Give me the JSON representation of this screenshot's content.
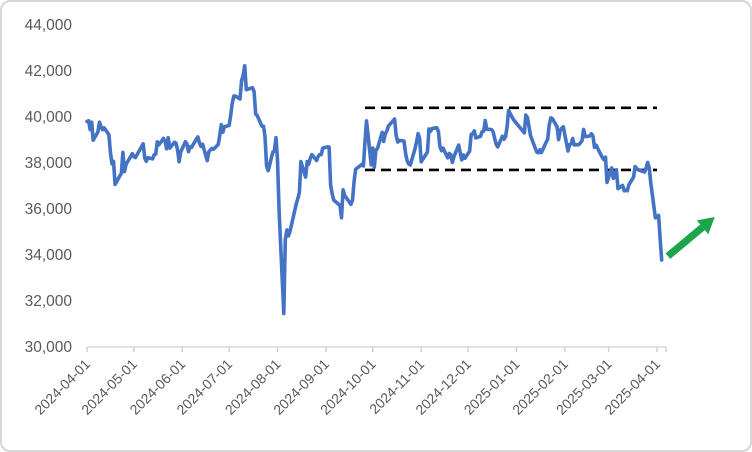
{
  "chart_data": {
    "type": "line",
    "title": "",
    "xlabel": "",
    "ylabel": "",
    "ylim": [
      30000,
      44000
    ],
    "y_tick_step": 2000,
    "y_tick_values": [
      30000,
      32000,
      34000,
      36000,
      38000,
      40000,
      42000,
      44000
    ],
    "y_tick_labels": [
      "30,000",
      "32,000",
      "34,000",
      "36,000",
      "38,000",
      "40,000",
      "42,000",
      "44,000"
    ],
    "x_tick_labels": [
      "2024-04-01",
      "2024-05-01",
      "2024-06-01",
      "2024-07-01",
      "2024-08-01",
      "2024-09-01",
      "2024-10-01",
      "2024-11-01",
      "2024-12-01",
      "2025-01-01",
      "2025-02-01",
      "2025-03-01",
      "2025-04-01"
    ],
    "x_range": [
      "2024-04-01",
      "2025-04-07"
    ],
    "grid": "off",
    "legend": "none",
    "series": [
      {
        "name": "daily-close",
        "color": "#4472C4",
        "points": [
          [
            "2024-04-01",
            39803
          ],
          [
            "2024-04-02",
            39839
          ],
          [
            "2024-04-03",
            39452
          ],
          [
            "2024-04-04",
            39774
          ],
          [
            "2024-04-05",
            38992
          ],
          [
            "2024-04-08",
            39347
          ],
          [
            "2024-04-09",
            39773
          ],
          [
            "2024-04-10",
            39582
          ],
          [
            "2024-04-11",
            39442
          ],
          [
            "2024-04-12",
            39524
          ],
          [
            "2024-04-15",
            39233
          ],
          [
            "2024-04-16",
            38471
          ],
          [
            "2024-04-17",
            37962
          ],
          [
            "2024-04-18",
            38080
          ],
          [
            "2024-04-19",
            37068
          ],
          [
            "2024-04-22",
            37439
          ],
          [
            "2024-04-23",
            37552
          ],
          [
            "2024-04-24",
            38460
          ],
          [
            "2024-04-25",
            37628
          ],
          [
            "2024-04-26",
            37935
          ],
          [
            "2024-04-30",
            38406
          ],
          [
            "2024-05-01",
            38274
          ],
          [
            "2024-05-02",
            38236
          ],
          [
            "2024-05-07",
            38835
          ],
          [
            "2024-05-08",
            38202
          ],
          [
            "2024-05-09",
            38074
          ],
          [
            "2024-05-10",
            38229
          ],
          [
            "2024-05-13",
            38179
          ],
          [
            "2024-05-14",
            38356
          ],
          [
            "2024-05-15",
            38386
          ],
          [
            "2024-05-16",
            38920
          ],
          [
            "2024-05-17",
            38787
          ],
          [
            "2024-05-20",
            39069
          ],
          [
            "2024-05-21",
            38947
          ],
          [
            "2024-05-22",
            38617
          ],
          [
            "2024-05-23",
            39103
          ],
          [
            "2024-05-24",
            38646
          ],
          [
            "2024-05-27",
            38900
          ],
          [
            "2024-05-28",
            38855
          ],
          [
            "2024-05-29",
            38557
          ],
          [
            "2024-05-30",
            38054
          ],
          [
            "2024-05-31",
            38488
          ],
          [
            "2024-06-03",
            38923
          ],
          [
            "2024-06-04",
            38837
          ],
          [
            "2024-06-05",
            38490
          ],
          [
            "2024-06-06",
            38703
          ],
          [
            "2024-06-07",
            38684
          ],
          [
            "2024-06-10",
            39038
          ],
          [
            "2024-06-11",
            39135
          ],
          [
            "2024-06-12",
            38876
          ],
          [
            "2024-06-13",
            38720
          ],
          [
            "2024-06-14",
            38815
          ],
          [
            "2024-06-17",
            38102
          ],
          [
            "2024-06-18",
            38482
          ],
          [
            "2024-06-19",
            38570
          ],
          [
            "2024-06-20",
            38633
          ],
          [
            "2024-06-21",
            38596
          ],
          [
            "2024-06-24",
            38804
          ],
          [
            "2024-06-25",
            39173
          ],
          [
            "2024-06-26",
            39667
          ],
          [
            "2024-06-27",
            39341
          ],
          [
            "2024-06-28",
            39583
          ],
          [
            "2024-07-01",
            39631
          ],
          [
            "2024-07-02",
            40074
          ],
          [
            "2024-07-03",
            40581
          ],
          [
            "2024-07-04",
            40914
          ],
          [
            "2024-07-05",
            40912
          ],
          [
            "2024-07-08",
            40781
          ],
          [
            "2024-07-09",
            41580
          ],
          [
            "2024-07-10",
            41831
          ],
          [
            "2024-07-11",
            42224
          ],
          [
            "2024-07-12",
            41191
          ],
          [
            "2024-07-16",
            41275
          ],
          [
            "2024-07-17",
            41098
          ],
          [
            "2024-07-18",
            40126
          ],
          [
            "2024-07-19",
            40064
          ],
          [
            "2024-07-22",
            39599
          ],
          [
            "2024-07-23",
            39595
          ],
          [
            "2024-07-24",
            39154
          ],
          [
            "2024-07-25",
            37870
          ],
          [
            "2024-07-26",
            37667
          ],
          [
            "2024-07-29",
            38468
          ],
          [
            "2024-07-30",
            38526
          ],
          [
            "2024-07-31",
            39102
          ],
          [
            "2024-08-01",
            38126
          ],
          [
            "2024-08-02",
            35910
          ],
          [
            "2024-08-05",
            31458
          ],
          [
            "2024-08-06",
            34675
          ],
          [
            "2024-08-07",
            35090
          ],
          [
            "2024-08-08",
            34831
          ],
          [
            "2024-08-09",
            35025
          ],
          [
            "2024-08-13",
            36232
          ],
          [
            "2024-08-14",
            36442
          ],
          [
            "2024-08-15",
            36726
          ],
          [
            "2024-08-16",
            38062
          ],
          [
            "2024-08-19",
            37388
          ],
          [
            "2024-08-20",
            38063
          ],
          [
            "2024-08-21",
            37952
          ],
          [
            "2024-08-22",
            38211
          ],
          [
            "2024-08-23",
            38364
          ],
          [
            "2024-08-26",
            38110
          ],
          [
            "2024-08-27",
            38288
          ],
          [
            "2024-08-28",
            38371
          ],
          [
            "2024-08-29",
            38362
          ],
          [
            "2024-08-30",
            38648
          ],
          [
            "2024-09-02",
            38700
          ],
          [
            "2024-09-03",
            38686
          ],
          [
            "2024-09-04",
            37047
          ],
          [
            "2024-09-05",
            36657
          ],
          [
            "2024-09-06",
            36391
          ],
          [
            "2024-09-09",
            36215
          ],
          [
            "2024-09-10",
            36159
          ],
          [
            "2024-09-11",
            35619
          ],
          [
            "2024-09-12",
            36833
          ],
          [
            "2024-09-13",
            36582
          ],
          [
            "2024-09-17",
            36203
          ],
          [
            "2024-09-18",
            36380
          ],
          [
            "2024-09-19",
            37155
          ],
          [
            "2024-09-20",
            37724
          ],
          [
            "2024-09-24",
            37940
          ],
          [
            "2024-09-25",
            37870
          ],
          [
            "2024-09-26",
            38925
          ],
          [
            "2024-09-27",
            39830
          ],
          [
            "2024-09-30",
            37920
          ],
          [
            "2024-10-01",
            38652
          ],
          [
            "2024-10-02",
            37808
          ],
          [
            "2024-10-03",
            38552
          ],
          [
            "2024-10-04",
            38636
          ],
          [
            "2024-10-07",
            39333
          ],
          [
            "2024-10-08",
            38938
          ],
          [
            "2024-10-09",
            39277
          ],
          [
            "2024-10-10",
            39381
          ],
          [
            "2024-10-11",
            39606
          ],
          [
            "2024-10-15",
            39911
          ],
          [
            "2024-10-16",
            39181
          ],
          [
            "2024-10-17",
            38911
          ],
          [
            "2024-10-18",
            38982
          ],
          [
            "2024-10-21",
            38955
          ],
          [
            "2024-10-22",
            38412
          ],
          [
            "2024-10-23",
            38105
          ],
          [
            "2024-10-24",
            37958
          ],
          [
            "2024-10-25",
            37914
          ],
          [
            "2024-10-28",
            38606
          ],
          [
            "2024-10-29",
            38904
          ],
          [
            "2024-10-30",
            39277
          ],
          [
            "2024-10-31",
            39081
          ],
          [
            "2024-11-01",
            38054
          ],
          [
            "2024-11-05",
            38475
          ],
          [
            "2024-11-06",
            39481
          ],
          [
            "2024-11-07",
            39381
          ],
          [
            "2024-11-08",
            39500
          ],
          [
            "2024-11-11",
            39533
          ],
          [
            "2024-11-12",
            39376
          ],
          [
            "2024-11-13",
            38721
          ],
          [
            "2024-11-14",
            38535
          ],
          [
            "2024-11-15",
            38642
          ],
          [
            "2024-11-18",
            38220
          ],
          [
            "2024-11-19",
            38414
          ],
          [
            "2024-11-20",
            38352
          ],
          [
            "2024-11-21",
            38026
          ],
          [
            "2024-11-22",
            38283
          ],
          [
            "2024-11-25",
            38780
          ],
          [
            "2024-11-26",
            38442
          ],
          [
            "2024-11-27",
            38134
          ],
          [
            "2024-11-28",
            38349
          ],
          [
            "2024-11-29",
            38208
          ],
          [
            "2024-12-02",
            38513
          ],
          [
            "2024-12-03",
            39248
          ],
          [
            "2024-12-04",
            39276
          ],
          [
            "2024-12-05",
            39396
          ],
          [
            "2024-12-06",
            39091
          ],
          [
            "2024-12-09",
            39160
          ],
          [
            "2024-12-10",
            39367
          ],
          [
            "2024-12-11",
            39372
          ],
          [
            "2024-12-12",
            39849
          ],
          [
            "2024-12-13",
            39470
          ],
          [
            "2024-12-16",
            39457
          ],
          [
            "2024-12-17",
            39364
          ],
          [
            "2024-12-18",
            39082
          ],
          [
            "2024-12-19",
            38814
          ],
          [
            "2024-12-20",
            38702
          ],
          [
            "2024-12-23",
            39161
          ],
          [
            "2024-12-24",
            39036
          ],
          [
            "2024-12-25",
            39130
          ],
          [
            "2024-12-26",
            39568
          ],
          [
            "2024-12-27",
            40281
          ],
          [
            "2024-12-30",
            39895
          ],
          [
            "2025-01-06",
            39307
          ],
          [
            "2025-01-07",
            40084
          ],
          [
            "2025-01-08",
            39981
          ],
          [
            "2025-01-09",
            39605
          ],
          [
            "2025-01-10",
            39190
          ],
          [
            "2025-01-14",
            38474
          ],
          [
            "2025-01-15",
            38444
          ],
          [
            "2025-01-16",
            38573
          ],
          [
            "2025-01-17",
            38451
          ],
          [
            "2025-01-20",
            38903
          ],
          [
            "2025-01-21",
            39028
          ],
          [
            "2025-01-22",
            39646
          ],
          [
            "2025-01-23",
            39959
          ],
          [
            "2025-01-24",
            39932
          ],
          [
            "2025-01-27",
            39566
          ],
          [
            "2025-01-28",
            39017
          ],
          [
            "2025-01-29",
            39414
          ],
          [
            "2025-01-30",
            39513
          ],
          [
            "2025-01-31",
            39572
          ],
          [
            "2025-02-03",
            38520
          ],
          [
            "2025-02-04",
            38798
          ],
          [
            "2025-02-05",
            38831
          ],
          [
            "2025-02-06",
            39066
          ],
          [
            "2025-02-07",
            38787
          ],
          [
            "2025-02-10",
            38801
          ],
          [
            "2025-02-12",
            38963
          ],
          [
            "2025-02-13",
            39461
          ],
          [
            "2025-02-14",
            39149
          ],
          [
            "2025-02-17",
            39174
          ],
          [
            "2025-02-18",
            39270
          ],
          [
            "2025-02-19",
            39164
          ],
          [
            "2025-02-20",
            38678
          ],
          [
            "2025-02-21",
            38776
          ],
          [
            "2025-02-25",
            38237
          ],
          [
            "2025-02-26",
            38142
          ],
          [
            "2025-02-27",
            38256
          ],
          [
            "2025-02-28",
            37156
          ],
          [
            "2025-03-03",
            37785
          ],
          [
            "2025-03-04",
            37331
          ],
          [
            "2025-03-05",
            37418
          ],
          [
            "2025-03-06",
            37704
          ],
          [
            "2025-03-07",
            36887
          ],
          [
            "2025-03-10",
            37028
          ],
          [
            "2025-03-11",
            36793
          ],
          [
            "2025-03-12",
            36819
          ],
          [
            "2025-03-13",
            36790
          ],
          [
            "2025-03-14",
            37053
          ],
          [
            "2025-03-17",
            37397
          ],
          [
            "2025-03-18",
            37845
          ],
          [
            "2025-03-19",
            37751
          ],
          [
            "2025-03-21",
            37677
          ],
          [
            "2025-03-24",
            37608
          ],
          [
            "2025-03-25",
            37780
          ],
          [
            "2025-03-26",
            38027
          ],
          [
            "2025-03-27",
            37799
          ],
          [
            "2025-03-28",
            37120
          ],
          [
            "2025-03-31",
            35618
          ],
          [
            "2025-04-01",
            35624
          ],
          [
            "2025-04-02",
            35725
          ],
          [
            "2025-04-03",
            34736
          ],
          [
            "2025-04-04",
            33781
          ]
        ]
      }
    ],
    "annotations": {
      "resistance_line": {
        "name": "upper-range-dashed-line",
        "value": 40400,
        "start_date": "2024-09-26",
        "end_date": "2025-04-01",
        "style": "dashed",
        "color": "#000000"
      },
      "support_line": {
        "name": "lower-range-dashed-line",
        "value": 37700,
        "start_date": "2024-09-26",
        "end_date": "2025-04-01",
        "style": "dashed",
        "color": "#000000"
      },
      "trend_arrow": {
        "name": "upward-trend-arrow",
        "direction": "up-right",
        "color": "#1CA64A",
        "tail": {
          "date": "2025-04-08",
          "value": 33950
        },
        "tip": {
          "date": "2025-05-08",
          "value": 35650
        }
      }
    }
  },
  "colors": {
    "background": "#FFFFFF",
    "frame_border": "#D6D6D6",
    "axis_line": "#D9D9D9",
    "tick_mark": "#CFCFCF",
    "tick_text": "#595959",
    "line": "#4472C4",
    "dashed": "#000000",
    "arrow": "#1CA64A"
  }
}
